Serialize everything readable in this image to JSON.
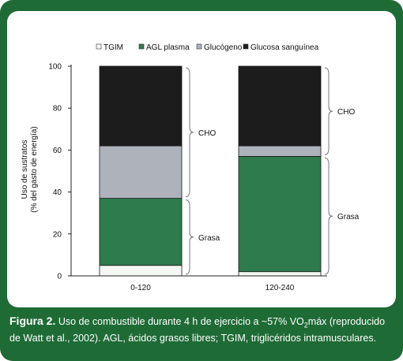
{
  "chart_data": {
    "type": "bar",
    "stacked": true,
    "categories": [
      "0-120",
      "120-240"
    ],
    "series": [
      {
        "name": "TGIM",
        "color": "#f4f7f4",
        "values": [
          5,
          2
        ]
      },
      {
        "name": "AGL plasma",
        "color": "#2e7b4e",
        "values": [
          32,
          55
        ]
      },
      {
        "name": "Glucógeno",
        "color": "#aeb3bb",
        "values": [
          25,
          5
        ]
      },
      {
        "name": "Glucosa sanguínea",
        "color": "#1c1c1c",
        "values": [
          38,
          38
        ]
      }
    ],
    "ylabel_line1": "Uso de sustratos",
    "ylabel_line2": "(% del gasto de energía)",
    "ylim": [
      0,
      100
    ],
    "yticks": [
      "0",
      "20",
      "40",
      "60",
      "80",
      "100"
    ],
    "braces": [
      {
        "category_index": 0,
        "label": "CHO",
        "from": 37,
        "to": 100
      },
      {
        "category_index": 0,
        "label": "Grasa",
        "from": 0,
        "to": 37
      },
      {
        "category_index": 1,
        "label": "CHO",
        "from": 57,
        "to": 100
      },
      {
        "category_index": 1,
        "label": "Grasa",
        "from": 0,
        "to": 57
      }
    ],
    "grid": false,
    "legend_position": "top"
  },
  "caption": {
    "label": "Figura 2.",
    "text_before_sub": " Uso de combustible durante 4 h de ejercicio a ~57% VO",
    "sub": "2",
    "text_after_sub": "máx (reproducido de Watt et al., 2002). AGL, ácidos grasos libres; TGIM, triglicéridos intramusculares."
  },
  "colors": {
    "frame": "#1e6b36",
    "panel": "#ffffff"
  }
}
